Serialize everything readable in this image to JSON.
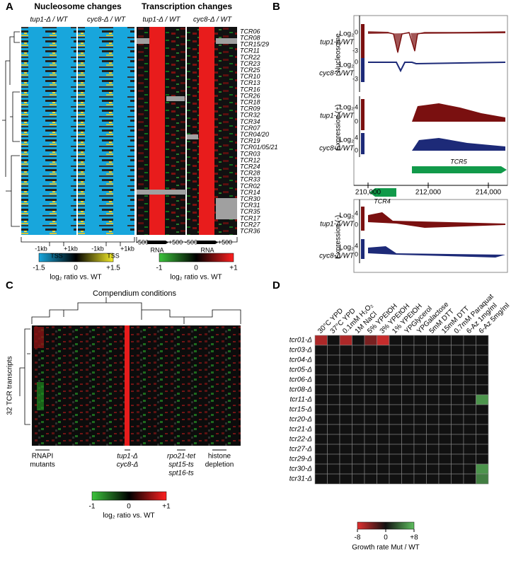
{
  "panel_a": {
    "label": "A",
    "nucleosome_title": "Nucleosome changes",
    "transcription_title": "Transcription changes",
    "columns": [
      "tup1-Δ / WT",
      "cyc8-Δ / WT",
      "tup1-Δ / WT",
      "cyc8-Δ / WT"
    ],
    "rows": [
      "TCR06",
      "TCR08",
      "TCR15/29",
      "TCR11",
      "TCR22",
      "TCR23",
      "TCR25",
      "TCR10",
      "TCR13",
      "TCR16",
      "TCR26",
      "TCR18",
      "TCR09",
      "TCR32",
      "TCR34",
      "TCR07",
      "TCR04/20",
      "TCR19",
      "TCR01/05/21",
      "TCR03",
      "TCR12",
      "TCR24",
      "TCR28",
      "TCR33",
      "TCR02",
      "TCR14",
      "TCR30",
      "TCR31",
      "TCR35",
      "TCR17",
      "TCR27",
      "TCR36"
    ],
    "nuc_axis": [
      "-1kb",
      "+1kb",
      "TSS"
    ],
    "rna_axis": [
      "-500",
      "+500",
      "RNA"
    ],
    "nuc_scale": [
      "-1.5",
      "0",
      "+1.5"
    ],
    "rna_scale": [
      "-1",
      "0",
      "+1"
    ],
    "scale_title": "log₂ ratio vs. WT"
  },
  "panel_b": {
    "label": "B",
    "groups": [
      "Nucleosome",
      "Expression (+)",
      "Expression (-)"
    ],
    "tracks": [
      "Log₂",
      "tup1-Δ/WT",
      "cyc8-Δ/WT"
    ],
    "ticks_top": [
      "0",
      "-3",
      "0",
      "-3",
      "4",
      "0",
      "4",
      "0"
    ],
    "ticks_bottom": [
      "4",
      "0",
      "4",
      "0"
    ],
    "coords": [
      "210,000",
      "212,000",
      "214,000"
    ],
    "genes": [
      "TCR5",
      "TCR4"
    ]
  },
  "panel_c": {
    "label": "C",
    "title": "Compendium conditions",
    "ylabel": "32 TCR transcripts",
    "groups": [
      "RNAPI",
      "mutants",
      "tup1-Δ",
      "cyc8-Δ",
      "rpo21-tet",
      "spt15-ts",
      "spt16-ts",
      "histone",
      "depletion"
    ],
    "scale": [
      "-1",
      "0",
      "+1"
    ],
    "scale_title": "log₂ ratio vs. WT"
  },
  "panel_d": {
    "label": "D",
    "columns": [
      "30°C YPD",
      "37°C YPD",
      "0.1mM H₂O₂",
      "1M NaCl",
      "5% YPEtOH",
      "3% YPEtOH",
      "1% YPEtOH",
      "YPGlycerol",
      "YPGalactose",
      "5mM DTT",
      "15mM DTT",
      "0.7mM Paraquat",
      "6-Az 1mg/ml",
      "6-Az 5mg/ml"
    ],
    "rows": [
      "tcr01-Δ",
      "tcr03-Δ",
      "tcr04-Δ",
      "tcr05-Δ",
      "tcr06-Δ",
      "tcr08-Δ",
      "tcr11-Δ",
      "tcr15-Δ",
      "tcr20-Δ",
      "tcr21-Δ",
      "tcr22-Δ",
      "tcr27-Δ",
      "tcr29-Δ",
      "tcr30-Δ",
      "tcr31-Δ"
    ],
    "values": [
      [
        -6,
        0,
        -6,
        0,
        -4,
        -7,
        0,
        0,
        0,
        0,
        0,
        0,
        0,
        0
      ],
      [
        0,
        0,
        0,
        0,
        0,
        0,
        0,
        0,
        0,
        0,
        0,
        0,
        0,
        0
      ],
      [
        0,
        0,
        0,
        0,
        0,
        0,
        0,
        0,
        0,
        0,
        0,
        0,
        0,
        0
      ],
      [
        0,
        0,
        0,
        0,
        0,
        0,
        0,
        0,
        0,
        0,
        0,
        0,
        0,
        0
      ],
      [
        0,
        0,
        0,
        0,
        0,
        0,
        0,
        0,
        0,
        0,
        0,
        0,
        0,
        0
      ],
      [
        0,
        0,
        0,
        0,
        0,
        0,
        0,
        0,
        0,
        0,
        0,
        0,
        0,
        0
      ],
      [
        0,
        0,
        0,
        0,
        0,
        0,
        0,
        0,
        0,
        0,
        0,
        0,
        0,
        6
      ],
      [
        0,
        0,
        0,
        0,
        0,
        0,
        0,
        0,
        0,
        0,
        0,
        0,
        0,
        0
      ],
      [
        0,
        0,
        0,
        0,
        0,
        0,
        0,
        0,
        0,
        0,
        0,
        0,
        0,
        0
      ],
      [
        0,
        0,
        0,
        0,
        0,
        0,
        0,
        0,
        0,
        0,
        0,
        0,
        0,
        0
      ],
      [
        0,
        0,
        0,
        0,
        0,
        0,
        0,
        0,
        0,
        0,
        0,
        0,
        0,
        0
      ],
      [
        0,
        0,
        0,
        0,
        0,
        0,
        0,
        0,
        0,
        0,
        0,
        0,
        0,
        0
      ],
      [
        0,
        0,
        0,
        0,
        0,
        0,
        0,
        0,
        0,
        0,
        0,
        0,
        0,
        0
      ],
      [
        0,
        0,
        0,
        0,
        0,
        0,
        0,
        0,
        0,
        0,
        0,
        0,
        0,
        6
      ],
      [
        0,
        0,
        0,
        0,
        0,
        0,
        0,
        0,
        0,
        0,
        0,
        0,
        0,
        5
      ]
    ],
    "scale_ticks": [
      {
        "value": -8,
        "label": "-8"
      },
      0,
      {
        "value": 8,
        "label": "+8"
      }
    ],
    "scale_title": "Growth rate Mut / WT"
  }
}
